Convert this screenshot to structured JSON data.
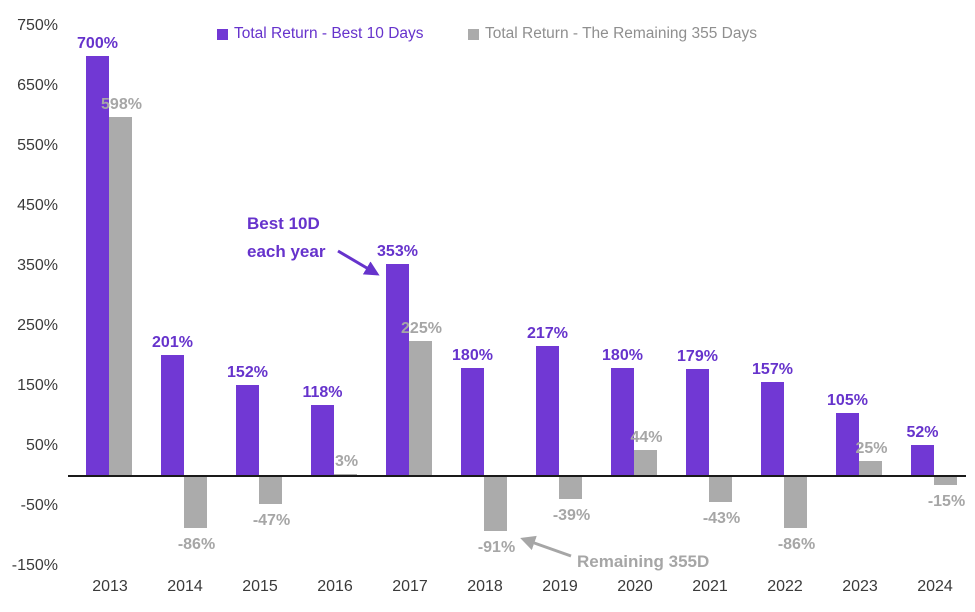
{
  "chart_data": {
    "type": "bar",
    "title": "",
    "categories": [
      "2013",
      "2014",
      "2015",
      "2016",
      "2017",
      "2018",
      "2019",
      "2020",
      "2021",
      "2022",
      "2023",
      "2024"
    ],
    "series": [
      {
        "name": "Total Return - Best 10 Days",
        "color": "#7138d4",
        "label_color": "#6633cc",
        "legend_text_color": "#6633cc",
        "values": [
          700,
          201,
          152,
          118,
          353,
          180,
          217,
          180,
          179,
          157,
          105,
          52
        ],
        "labels": [
          "700%",
          "201%",
          "152%",
          "118%",
          "353%",
          "180%",
          "217%",
          "180%",
          "179%",
          "157%",
          "105%",
          "52%"
        ]
      },
      {
        "name": "Total Return - The Remaining 355 Days",
        "color": "#ababab",
        "label_color": "#a6a6a6",
        "legend_text_color": "#8f8f8f",
        "values": [
          598,
          -86,
          -47,
          3,
          225,
          -91,
          -39,
          44,
          -43,
          -86,
          25,
          -15
        ],
        "labels": [
          "598%",
          "-86%",
          "-47%",
          "3%",
          "225%",
          "-91%",
          "-39%",
          "44%",
          "-43%",
          "-86%",
          "25%",
          "-15%"
        ]
      }
    ],
    "y_axis": {
      "ticks": [
        750,
        650,
        550,
        450,
        350,
        250,
        150,
        50,
        -50,
        -150
      ],
      "tick_labels": [
        "750%",
        "650%",
        "550%",
        "450%",
        "350%",
        "250%",
        "150%",
        "50%",
        "-50%",
        "-150%"
      ],
      "min": -150,
      "max": 750,
      "unit": "%"
    },
    "grid": false,
    "legend_position": "top",
    "axis_line_color": "#1a1a1a",
    "background_color": "#ffffff"
  },
  "annotations": {
    "best10d": {
      "line1": "Best 10D",
      "line2": "each year",
      "color": "#6633cc"
    },
    "remaining": {
      "text": "Remaining 355D",
      "color": "#a6a6a6"
    }
  }
}
